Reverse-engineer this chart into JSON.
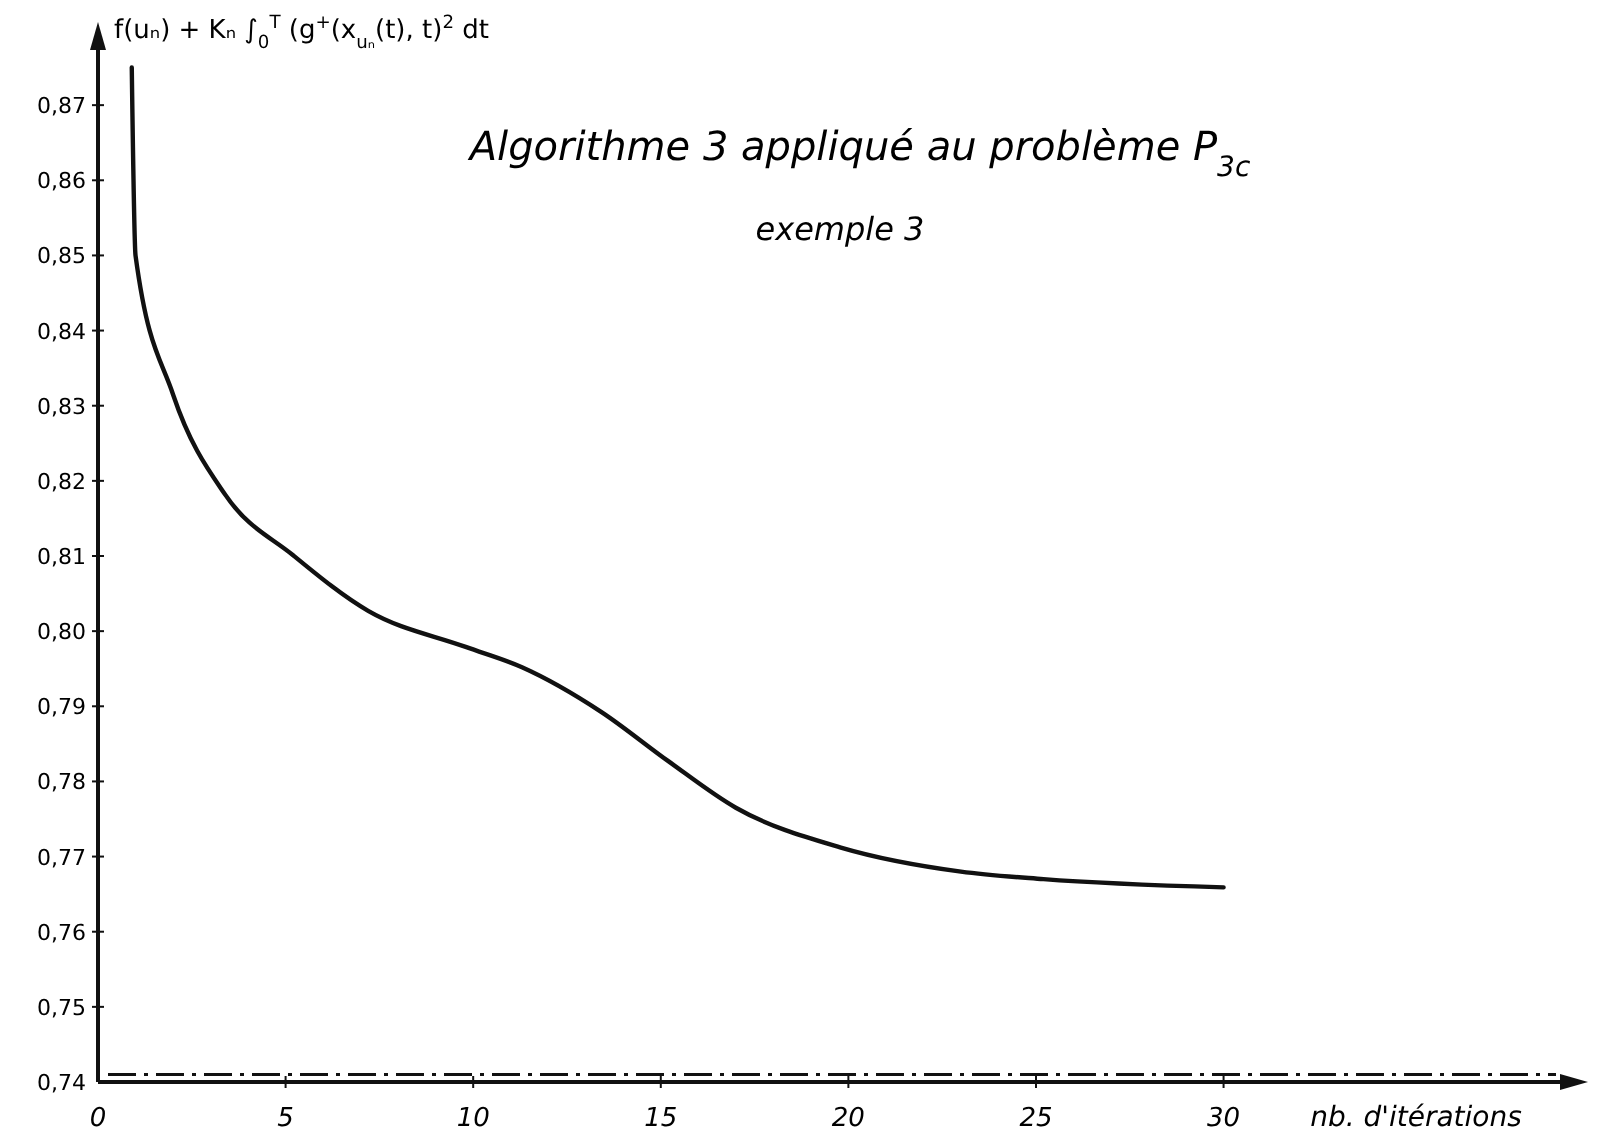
{
  "chart_data": {
    "type": "line",
    "title": "Algorithme 3 appliqué au problème P$_{3c}$",
    "subtitle": "exemple 3",
    "xlabel": "nb. d'itérations",
    "ylabel": "f(uₙ) + Kₙ ∫$_{0}$$^{T}$ (g$^{+}$(x$_{uₙ}$(t), t)$^{2}$ dt",
    "x": [
      0.9,
      1.0,
      2.0,
      3.4,
      5.2,
      7.2,
      9.8,
      11.3,
      13.4,
      15.2,
      17.0,
      19.8,
      23.0,
      25.2,
      30.0
    ],
    "series": [
      {
        "color": "#111111",
        "values": [
          0.875,
          0.85,
          0.8315,
          0.8181,
          0.8101,
          0.8027,
          0.7979,
          0.7952,
          0.7893,
          0.7827,
          0.7765,
          0.7712,
          0.768,
          0.767,
          0.7659
        ]
      }
    ],
    "xlim": [
      0,
      39.5
    ],
    "xticks": [
      0,
      5,
      10,
      15,
      20,
      25,
      30
    ],
    "ylim": [
      0.74,
      0.88
    ],
    "yticks": [
      {
        "value": 0.74,
        "label": "0,74"
      },
      {
        "value": 0.75,
        "label": "0,75"
      },
      {
        "value": 0.76,
        "label": "0,76"
      },
      {
        "value": 0.77,
        "label": "0,77"
      },
      {
        "value": 0.78,
        "label": "0,78"
      },
      {
        "value": 0.79,
        "label": "0,79"
      },
      {
        "value": 0.8,
        "label": "0,80"
      },
      {
        "value": 0.81,
        "label": "0,81"
      },
      {
        "value": 0.82,
        "label": "0,82"
      },
      {
        "value": 0.83,
        "label": "0,83"
      },
      {
        "value": 0.84,
        "label": "0,84"
      },
      {
        "value": 0.85,
        "label": "0,85"
      },
      {
        "value": 0.86,
        "label": "0,86"
      },
      {
        "value": 0.87,
        "label": "0,87"
      }
    ],
    "ref_lines": [
      {
        "axis": "y",
        "value": 0.741,
        "line_style": "dashed",
        "color": "#111111"
      }
    ],
    "grid": false,
    "marker": "none",
    "line_style": "solid"
  }
}
